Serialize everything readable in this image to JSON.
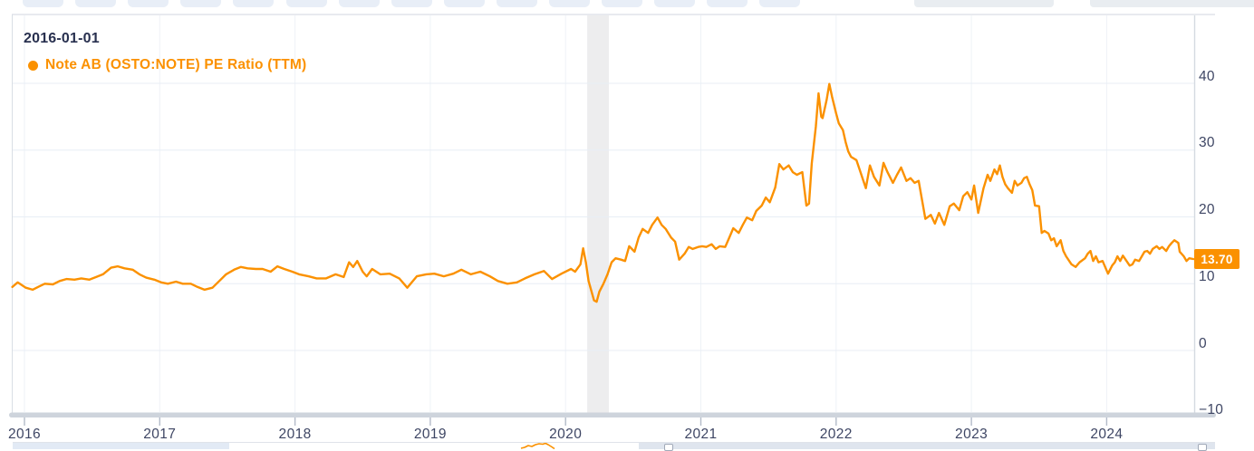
{
  "toolbar": {
    "small_button_count": 15,
    "wide_control_count": 2
  },
  "chart": {
    "start_date_label": "2016-01-01",
    "legend": {
      "label": "Note AB (OSTO:NOTE) PE Ratio (TTM)",
      "marker": "dot",
      "color": "#fb9100"
    },
    "last_value": "13.70",
    "colors": {
      "series": "#fb9100",
      "band": "#ededee",
      "grid_h": "#e8eef5",
      "grid_v": "#eef2f7",
      "border": "#d9dee5",
      "axis_line": "#d5dae1",
      "axis_bar": "#ced4dc",
      "tick": "#b3bbc9",
      "label_text": "#3e4664"
    }
  },
  "chart_data": {
    "type": "line",
    "title": "Note AB (OSTO:NOTE) PE Ratio (TTM)",
    "xlabel": "",
    "ylabel": "",
    "legend_position": "top-left",
    "grid": true,
    "x_ticks": [
      "2016",
      "2017",
      "2018",
      "2019",
      "2020",
      "2021",
      "2022",
      "2023",
      "2024"
    ],
    "y_ticks": [
      40,
      30,
      20,
      10,
      0,
      -10
    ],
    "xlim": [
      2015.9,
      2024.67
    ],
    "ylim": [
      -10,
      50
    ],
    "recession_band": {
      "from": 2020.16,
      "to": 2020.32
    },
    "last_value": 13.7,
    "series": [
      {
        "name": "Note AB (OSTO:NOTE) PE Ratio (TTM)",
        "color": "#fb9100",
        "points": [
          [
            2015.91,
            9.5
          ],
          [
            2015.95,
            10.2
          ],
          [
            2016.01,
            9.4
          ],
          [
            2016.06,
            9.1
          ],
          [
            2016.11,
            9.6
          ],
          [
            2016.15,
            10.0
          ],
          [
            2016.21,
            9.9
          ],
          [
            2016.26,
            10.4
          ],
          [
            2016.31,
            10.7
          ],
          [
            2016.37,
            10.6
          ],
          [
            2016.42,
            10.8
          ],
          [
            2016.48,
            10.6
          ],
          [
            2016.53,
            11.0
          ],
          [
            2016.58,
            11.4
          ],
          [
            2016.64,
            12.4
          ],
          [
            2016.69,
            12.6
          ],
          [
            2016.74,
            12.3
          ],
          [
            2016.8,
            12.1
          ],
          [
            2016.85,
            11.4
          ],
          [
            2016.9,
            10.9
          ],
          [
            2016.96,
            10.6
          ],
          [
            2017.01,
            10.2
          ],
          [
            2017.06,
            10.0
          ],
          [
            2017.12,
            10.3
          ],
          [
            2017.17,
            10.0
          ],
          [
            2017.23,
            10.0
          ],
          [
            2017.28,
            9.5
          ],
          [
            2017.33,
            9.1
          ],
          [
            2017.39,
            9.4
          ],
          [
            2017.44,
            10.4
          ],
          [
            2017.49,
            11.4
          ],
          [
            2017.55,
            12.1
          ],
          [
            2017.6,
            12.5
          ],
          [
            2017.65,
            12.3
          ],
          [
            2017.71,
            12.2
          ],
          [
            2017.76,
            12.2
          ],
          [
            2017.82,
            11.8
          ],
          [
            2017.87,
            12.6
          ],
          [
            2017.92,
            12.2
          ],
          [
            2017.98,
            11.8
          ],
          [
            2018.03,
            11.4
          ],
          [
            2018.1,
            11.1
          ],
          [
            2018.16,
            10.8
          ],
          [
            2018.23,
            10.8
          ],
          [
            2018.3,
            11.4
          ],
          [
            2018.36,
            11.0
          ],
          [
            2018.4,
            13.2
          ],
          [
            2018.43,
            12.5
          ],
          [
            2018.46,
            13.4
          ],
          [
            2018.5,
            11.8
          ],
          [
            2018.53,
            11.1
          ],
          [
            2018.57,
            12.2
          ],
          [
            2018.63,
            11.4
          ],
          [
            2018.7,
            11.5
          ],
          [
            2018.77,
            10.8
          ],
          [
            2018.83,
            9.4
          ],
          [
            2018.9,
            11.1
          ],
          [
            2018.97,
            11.4
          ],
          [
            2019.03,
            11.5
          ],
          [
            2019.1,
            11.1
          ],
          [
            2019.17,
            11.5
          ],
          [
            2019.23,
            12.1
          ],
          [
            2019.3,
            11.4
          ],
          [
            2019.37,
            11.8
          ],
          [
            2019.44,
            11.1
          ],
          [
            2019.5,
            10.4
          ],
          [
            2019.57,
            10.0
          ],
          [
            2019.64,
            10.2
          ],
          [
            2019.7,
            10.8
          ],
          [
            2019.77,
            11.4
          ],
          [
            2019.84,
            11.9
          ],
          [
            2019.9,
            10.7
          ],
          [
            2019.97,
            11.5
          ],
          [
            2020.04,
            12.2
          ],
          [
            2020.07,
            11.8
          ],
          [
            2020.11,
            12.9
          ],
          [
            2020.13,
            15.3
          ],
          [
            2020.15,
            13.2
          ],
          [
            2020.17,
            10.4
          ],
          [
            2020.21,
            7.5
          ],
          [
            2020.23,
            7.3
          ],
          [
            2020.25,
            8.8
          ],
          [
            2020.28,
            10.0
          ],
          [
            2020.31,
            11.4
          ],
          [
            2020.34,
            13.2
          ],
          [
            2020.37,
            13.8
          ],
          [
            2020.41,
            13.6
          ],
          [
            2020.44,
            13.4
          ],
          [
            2020.47,
            15.6
          ],
          [
            2020.51,
            14.8
          ],
          [
            2020.54,
            16.9
          ],
          [
            2020.57,
            18.2
          ],
          [
            2020.61,
            17.6
          ],
          [
            2020.64,
            18.8
          ],
          [
            2020.68,
            19.9
          ],
          [
            2020.71,
            18.8
          ],
          [
            2020.74,
            18.2
          ],
          [
            2020.78,
            16.9
          ],
          [
            2020.81,
            16.3
          ],
          [
            2020.84,
            13.6
          ],
          [
            2020.88,
            14.5
          ],
          [
            2020.91,
            15.5
          ],
          [
            2020.94,
            15.2
          ],
          [
            2020.98,
            15.5
          ],
          [
            2021.01,
            15.6
          ],
          [
            2021.04,
            15.5
          ],
          [
            2021.08,
            15.9
          ],
          [
            2021.11,
            15.2
          ],
          [
            2021.14,
            15.6
          ],
          [
            2021.18,
            15.5
          ],
          [
            2021.21,
            16.9
          ],
          [
            2021.24,
            18.3
          ],
          [
            2021.28,
            17.6
          ],
          [
            2021.31,
            18.8
          ],
          [
            2021.34,
            19.9
          ],
          [
            2021.38,
            19.5
          ],
          [
            2021.41,
            20.9
          ],
          [
            2021.45,
            21.7
          ],
          [
            2021.48,
            22.9
          ],
          [
            2021.51,
            22.2
          ],
          [
            2021.55,
            24.4
          ],
          [
            2021.58,
            27.9
          ],
          [
            2021.61,
            27.1
          ],
          [
            2021.65,
            27.7
          ],
          [
            2021.68,
            26.7
          ],
          [
            2021.71,
            26.3
          ],
          [
            2021.75,
            26.7
          ],
          [
            2021.78,
            21.7
          ],
          [
            2021.8,
            22.0
          ],
          [
            2021.82,
            28.0
          ],
          [
            2021.85,
            33.5
          ],
          [
            2021.87,
            38.5
          ],
          [
            2021.89,
            35.0
          ],
          [
            2021.9,
            34.8
          ],
          [
            2021.93,
            37.5
          ],
          [
            2021.95,
            39.9
          ],
          [
            2021.97,
            38.0
          ],
          [
            2022.0,
            35.5
          ],
          [
            2022.02,
            34.0
          ],
          [
            2022.05,
            33.0
          ],
          [
            2022.07,
            31.2
          ],
          [
            2022.09,
            29.8
          ],
          [
            2022.11,
            29.0
          ],
          [
            2022.15,
            28.5
          ],
          [
            2022.18,
            26.7
          ],
          [
            2022.22,
            24.3
          ],
          [
            2022.25,
            27.7
          ],
          [
            2022.28,
            26.0
          ],
          [
            2022.32,
            24.7
          ],
          [
            2022.35,
            28.1
          ],
          [
            2022.38,
            26.7
          ],
          [
            2022.42,
            25.1
          ],
          [
            2022.45,
            26.3
          ],
          [
            2022.48,
            27.4
          ],
          [
            2022.52,
            25.4
          ],
          [
            2022.55,
            25.8
          ],
          [
            2022.58,
            25.1
          ],
          [
            2022.61,
            25.4
          ],
          [
            2022.66,
            19.7
          ],
          [
            2022.7,
            20.3
          ],
          [
            2022.73,
            19.0
          ],
          [
            2022.76,
            20.6
          ],
          [
            2022.8,
            18.8
          ],
          [
            2022.84,
            21.6
          ],
          [
            2022.87,
            22.0
          ],
          [
            2022.91,
            21.0
          ],
          [
            2022.94,
            23.1
          ],
          [
            2022.97,
            23.7
          ],
          [
            2023.0,
            22.6
          ],
          [
            2023.02,
            24.7
          ],
          [
            2023.05,
            20.6
          ],
          [
            2023.09,
            24.3
          ],
          [
            2023.12,
            26.3
          ],
          [
            2023.14,
            25.4
          ],
          [
            2023.17,
            27.1
          ],
          [
            2023.19,
            26.4
          ],
          [
            2023.21,
            27.7
          ],
          [
            2023.23,
            26.0
          ],
          [
            2023.25,
            24.9
          ],
          [
            2023.27,
            24.3
          ],
          [
            2023.3,
            23.6
          ],
          [
            2023.32,
            25.4
          ],
          [
            2023.34,
            24.7
          ],
          [
            2023.37,
            25.1
          ],
          [
            2023.39,
            25.8
          ],
          [
            2023.41,
            26.0
          ],
          [
            2023.43,
            24.9
          ],
          [
            2023.45,
            24.0
          ],
          [
            2023.47,
            21.7
          ],
          [
            2023.5,
            21.6
          ],
          [
            2023.52,
            17.6
          ],
          [
            2023.54,
            17.9
          ],
          [
            2023.57,
            17.5
          ],
          [
            2023.59,
            16.5
          ],
          [
            2023.61,
            16.8
          ],
          [
            2023.63,
            15.6
          ],
          [
            2023.66,
            16.5
          ],
          [
            2023.68,
            14.9
          ],
          [
            2023.7,
            14.1
          ],
          [
            2023.74,
            12.9
          ],
          [
            2023.77,
            12.5
          ],
          [
            2023.8,
            13.2
          ],
          [
            2023.84,
            13.8
          ],
          [
            2023.86,
            14.5
          ],
          [
            2023.88,
            14.9
          ],
          [
            2023.9,
            13.4
          ],
          [
            2023.92,
            14.1
          ],
          [
            2023.94,
            13.2
          ],
          [
            2023.97,
            13.4
          ],
          [
            2024.01,
            11.5
          ],
          [
            2024.04,
            12.7
          ],
          [
            2024.06,
            13.2
          ],
          [
            2024.08,
            14.1
          ],
          [
            2024.1,
            13.4
          ],
          [
            2024.12,
            14.2
          ],
          [
            2024.14,
            13.6
          ],
          [
            2024.17,
            12.7
          ],
          [
            2024.19,
            12.9
          ],
          [
            2024.21,
            13.6
          ],
          [
            2024.24,
            13.4
          ],
          [
            2024.26,
            14.1
          ],
          [
            2024.28,
            14.8
          ],
          [
            2024.3,
            14.9
          ],
          [
            2024.32,
            14.5
          ],
          [
            2024.34,
            15.2
          ],
          [
            2024.37,
            15.6
          ],
          [
            2024.39,
            15.2
          ],
          [
            2024.41,
            15.5
          ],
          [
            2024.44,
            14.9
          ],
          [
            2024.46,
            15.6
          ],
          [
            2024.48,
            16.1
          ],
          [
            2024.5,
            16.5
          ],
          [
            2024.53,
            16.1
          ],
          [
            2024.54,
            14.8
          ],
          [
            2024.57,
            14.1
          ],
          [
            2024.59,
            13.4
          ],
          [
            2024.61,
            13.8
          ],
          [
            2024.64,
            13.7
          ]
        ]
      }
    ]
  }
}
